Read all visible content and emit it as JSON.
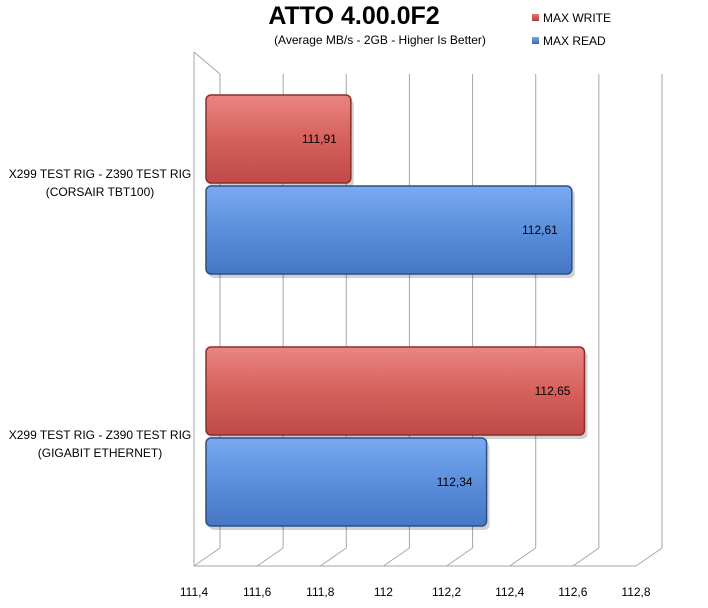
{
  "chart_data": {
    "type": "bar",
    "orientation": "horizontal",
    "title": "ATTO 4.00.0F2",
    "subtitle": "(Average MB/s - 2GB - Higher Is Better)",
    "categories": [
      {
        "line1": "X299 TEST RIG - Z390 TEST RIG",
        "line2": "(CORSAIR TBT100)"
      },
      {
        "line1": "X299 TEST RIG - Z390 TEST RIG",
        "line2": "(GIGABIT ETHERNET)"
      }
    ],
    "series": [
      {
        "name": "MAX WRITE",
        "color": "#c0504d",
        "values": [
          111.91,
          112.65
        ],
        "labels": [
          "111,91",
          "112,65"
        ]
      },
      {
        "name": "MAX READ",
        "color": "#4f81bd",
        "values": [
          112.61,
          112.34
        ],
        "labels": [
          "112,61",
          "112,34"
        ]
      }
    ],
    "xlim": [
      111.4,
      112.8
    ],
    "ticks": [
      "111,4",
      "111,6",
      "111,8",
      "112",
      "112,2",
      "112,4",
      "112,6",
      "112,8"
    ],
    "grid": true,
    "legend_position": "top-right"
  }
}
